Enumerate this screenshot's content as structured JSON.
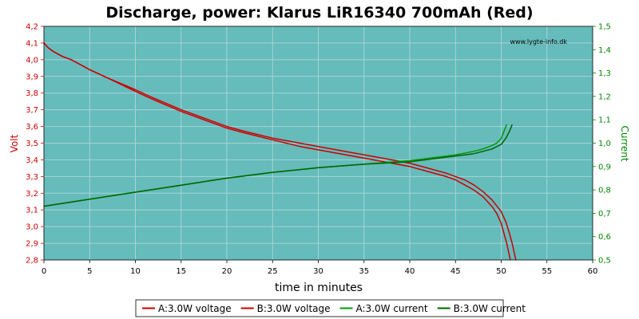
{
  "chart_data": {
    "type": "line",
    "title": "Discharge, power: Klarus LiR16340 700mAh (Red)",
    "xlabel": "time in minutes",
    "ylabel_left": "Volt",
    "ylabel_right": "Current",
    "watermark": "www.lygte-info.dk",
    "xlim": [
      0,
      60
    ],
    "ylim_left": [
      2.8,
      4.2
    ],
    "ylim_right": [
      0.5,
      1.5
    ],
    "x_ticks": [
      "0",
      "5",
      "10",
      "15",
      "20",
      "25",
      "30",
      "35",
      "40",
      "45",
      "50",
      "55",
      "60"
    ],
    "y_left_ticks": [
      "2,8",
      "2,9",
      "3,0",
      "3,1",
      "3,2",
      "3,3",
      "3,4",
      "3,5",
      "3,6",
      "3,7",
      "3,8",
      "3,9",
      "4,0",
      "4,1",
      "4,2"
    ],
    "y_right_ticks": [
      "0,5",
      "0,6",
      "0,7",
      "0,8",
      "0,9",
      "1,0",
      "1,1",
      "1,2",
      "1,3",
      "1,4",
      "1,5"
    ],
    "grid": true,
    "legend_position": "bottom",
    "colors": {
      "plot_bg": "#66bbbb",
      "grid": "#a8d4d4",
      "voltage": "#cc0000",
      "current_a": "#009900",
      "current_b": "#006600",
      "left_axis": "#cc0000",
      "right_axis": "#008800"
    },
    "series": [
      {
        "name": "A:3.0W voltage",
        "axis": "left",
        "color": "#cc0000",
        "x": [
          0,
          0.5,
          1,
          2,
          3,
          5,
          7,
          10,
          12,
          15,
          18,
          20,
          22,
          25,
          28,
          30,
          33,
          35,
          38,
          40,
          42,
          44,
          45,
          46,
          47,
          48,
          49,
          49.5,
          50,
          50.3,
          50.6,
          50.8,
          51
        ],
        "y": [
          4.1,
          4.07,
          4.05,
          4.02,
          4.0,
          3.94,
          3.89,
          3.81,
          3.76,
          3.69,
          3.63,
          3.59,
          3.56,
          3.52,
          3.48,
          3.46,
          3.43,
          3.41,
          3.38,
          3.36,
          3.33,
          3.3,
          3.28,
          3.25,
          3.22,
          3.18,
          3.12,
          3.08,
          3.02,
          2.96,
          2.9,
          2.85,
          2.8
        ]
      },
      {
        "name": "B:3.0W voltage",
        "axis": "left",
        "color": "#cc0000",
        "x": [
          0,
          0.5,
          1,
          2,
          3,
          5,
          7,
          10,
          12,
          15,
          18,
          20,
          22,
          25,
          28,
          30,
          33,
          35,
          38,
          40,
          42,
          44,
          45,
          46,
          47,
          48,
          49,
          50,
          50.5,
          50.9,
          51.2,
          51.4,
          51.6
        ],
        "y": [
          4.1,
          4.07,
          4.05,
          4.02,
          4.0,
          3.94,
          3.89,
          3.82,
          3.77,
          3.7,
          3.64,
          3.6,
          3.57,
          3.53,
          3.5,
          3.48,
          3.45,
          3.43,
          3.4,
          3.38,
          3.35,
          3.32,
          3.3,
          3.28,
          3.25,
          3.21,
          3.16,
          3.09,
          3.03,
          2.96,
          2.9,
          2.85,
          2.8
        ]
      },
      {
        "name": "A:3.0W current",
        "axis": "right",
        "color": "#009900",
        "x": [
          0,
          5,
          10,
          15,
          20,
          25,
          30,
          35,
          40,
          43,
          45,
          47,
          48,
          49,
          49.5,
          50,
          50.3,
          50.6
        ],
        "y": [
          0.73,
          0.76,
          0.79,
          0.82,
          0.85,
          0.875,
          0.895,
          0.91,
          0.925,
          0.94,
          0.95,
          0.965,
          0.975,
          0.99,
          1.0,
          1.02,
          1.05,
          1.08
        ]
      },
      {
        "name": "B:3.0W current",
        "axis": "right",
        "color": "#006600",
        "x": [
          0,
          5,
          10,
          15,
          20,
          25,
          30,
          35,
          40,
          43,
          45,
          47,
          48,
          49,
          50,
          50.5,
          50.9,
          51.2
        ],
        "y": [
          0.73,
          0.76,
          0.79,
          0.82,
          0.85,
          0.875,
          0.895,
          0.91,
          0.92,
          0.935,
          0.945,
          0.955,
          0.965,
          0.975,
          0.995,
          1.02,
          1.05,
          1.08
        ]
      }
    ]
  }
}
